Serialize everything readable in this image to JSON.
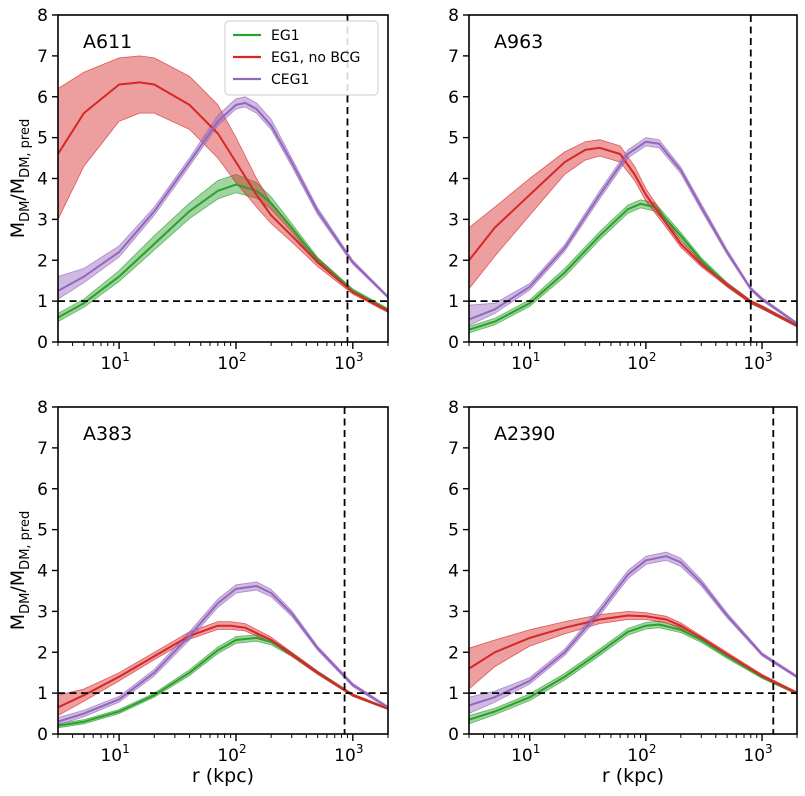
{
  "chart_data": [
    {
      "type": "line",
      "title": "A611",
      "xlabel": "",
      "ylabel": "M_DM/M_DM,pred",
      "xscale": "log",
      "xlim": [
        3,
        2000
      ],
      "ylim": [
        0,
        8
      ],
      "yticks": [
        "0",
        "1",
        "2",
        "3",
        "4",
        "5",
        "6",
        "7",
        "8"
      ],
      "xticks": [
        {
          "base": "10",
          "exp": "1"
        },
        {
          "base": "10",
          "exp": "2"
        },
        {
          "base": "10",
          "exp": "3"
        }
      ],
      "hline": 1,
      "vline": 900,
      "legend": {
        "placement": "top-right",
        "entries": [
          "EG1",
          "EG1, no BCG",
          "CEG1"
        ]
      },
      "series": [
        {
          "name": "EG1",
          "color": "#2ca02c",
          "x": [
            3,
            5,
            10,
            20,
            40,
            70,
            100,
            150,
            200,
            300,
            500,
            1000,
            2000
          ],
          "y": [
            0.6,
            0.95,
            1.6,
            2.4,
            3.2,
            3.7,
            3.85,
            3.7,
            3.4,
            2.8,
            2.0,
            1.25,
            0.78
          ],
          "lo": [
            0.5,
            0.85,
            1.48,
            2.25,
            3.02,
            3.5,
            3.65,
            3.52,
            3.25,
            2.7,
            1.93,
            1.2,
            0.74
          ],
          "hi": [
            0.7,
            1.05,
            1.75,
            2.6,
            3.4,
            3.95,
            4.1,
            3.9,
            3.55,
            2.9,
            2.07,
            1.3,
            0.82
          ]
        },
        {
          "name": "EG1, no BCG",
          "color": "#d62728",
          "x": [
            3,
            5,
            10,
            15,
            20,
            40,
            70,
            100,
            150,
            200,
            300,
            500,
            1000,
            2000
          ],
          "y": [
            4.6,
            5.6,
            6.3,
            6.35,
            6.3,
            5.8,
            5.1,
            4.4,
            3.6,
            3.1,
            2.6,
            1.95,
            1.22,
            0.76
          ],
          "lo": [
            3.0,
            4.3,
            5.4,
            5.6,
            5.6,
            5.2,
            4.5,
            3.9,
            3.3,
            2.9,
            2.45,
            1.85,
            1.17,
            0.72
          ],
          "hi": [
            6.2,
            6.6,
            6.95,
            7.0,
            6.95,
            6.5,
            5.8,
            5.0,
            4.0,
            3.4,
            2.78,
            2.05,
            1.27,
            0.8
          ]
        },
        {
          "name": "CEG1",
          "color": "#9467bd",
          "x": [
            3,
            5,
            10,
            20,
            40,
            70,
            100,
            120,
            150,
            200,
            300,
            500,
            1000,
            2000
          ],
          "y": [
            1.25,
            1.6,
            2.2,
            3.2,
            4.4,
            5.4,
            5.8,
            5.85,
            5.7,
            5.3,
            4.4,
            3.2,
            1.95,
            1.1
          ],
          "lo": [
            1.05,
            1.45,
            2.08,
            3.1,
            4.3,
            5.3,
            5.7,
            5.75,
            5.6,
            5.2,
            4.3,
            3.12,
            1.9,
            1.07
          ],
          "hi": [
            1.6,
            1.8,
            2.35,
            3.3,
            4.5,
            5.55,
            5.95,
            6.0,
            5.85,
            5.45,
            4.5,
            3.28,
            2.0,
            1.13
          ]
        }
      ]
    },
    {
      "type": "line",
      "title": "A963",
      "xlabel": "",
      "ylabel": "",
      "xscale": "log",
      "xlim": [
        3,
        2000
      ],
      "ylim": [
        0,
        8
      ],
      "yticks": [
        "0",
        "1",
        "2",
        "3",
        "4",
        "5",
        "6",
        "7",
        "8"
      ],
      "xticks": [
        {
          "base": "10",
          "exp": "1"
        },
        {
          "base": "10",
          "exp": "2"
        },
        {
          "base": "10",
          "exp": "3"
        }
      ],
      "hline": 1,
      "vline": 800,
      "series": [
        {
          "name": "EG1",
          "color": "#2ca02c",
          "x": [
            3,
            5,
            10,
            20,
            40,
            70,
            90,
            120,
            200,
            300,
            500,
            800,
            1000,
            2000
          ],
          "y": [
            0.3,
            0.5,
            0.95,
            1.7,
            2.6,
            3.25,
            3.38,
            3.3,
            2.6,
            2.0,
            1.4,
            0.98,
            0.85,
            0.4
          ],
          "lo": [
            0.22,
            0.42,
            0.87,
            1.6,
            2.5,
            3.15,
            3.28,
            3.2,
            2.52,
            1.94,
            1.35,
            0.94,
            0.81,
            0.37
          ],
          "hi": [
            0.38,
            0.58,
            1.03,
            1.8,
            2.7,
            3.35,
            3.48,
            3.4,
            2.68,
            2.06,
            1.45,
            1.02,
            0.89,
            0.43
          ]
        },
        {
          "name": "EG1, no BCG",
          "color": "#d62728",
          "x": [
            3,
            5,
            10,
            20,
            30,
            40,
            60,
            80,
            100,
            150,
            200,
            300,
            500,
            800,
            1000,
            2000
          ],
          "y": [
            2.0,
            2.8,
            3.6,
            4.4,
            4.7,
            4.75,
            4.6,
            4.1,
            3.6,
            2.9,
            2.4,
            1.9,
            1.4,
            0.98,
            0.85,
            0.4
          ],
          "lo": [
            1.3,
            2.1,
            3.1,
            4.1,
            4.45,
            4.55,
            4.4,
            3.95,
            3.45,
            2.8,
            2.32,
            1.84,
            1.35,
            0.94,
            0.81,
            0.37
          ],
          "hi": [
            2.8,
            3.3,
            4.0,
            4.65,
            4.9,
            4.95,
            4.8,
            4.3,
            3.75,
            3.0,
            2.48,
            1.96,
            1.45,
            1.02,
            0.89,
            0.43
          ]
        },
        {
          "name": "CEG1",
          "color": "#9467bd",
          "x": [
            3,
            5,
            10,
            20,
            40,
            70,
            100,
            130,
            200,
            300,
            500,
            800,
            1000,
            2000
          ],
          "y": [
            0.55,
            0.8,
            1.35,
            2.3,
            3.6,
            4.6,
            4.9,
            4.85,
            4.2,
            3.3,
            2.2,
            1.3,
            1.05,
            0.45
          ],
          "lo": [
            0.4,
            0.7,
            1.27,
            2.22,
            3.5,
            4.5,
            4.8,
            4.75,
            4.12,
            3.22,
            2.14,
            1.26,
            1.01,
            0.42
          ],
          "hi": [
            0.9,
            0.95,
            1.43,
            2.38,
            3.7,
            4.7,
            5.0,
            4.95,
            4.28,
            3.38,
            2.26,
            1.34,
            1.09,
            0.48
          ]
        }
      ]
    },
    {
      "type": "line",
      "title": "A383",
      "xlabel": "r (kpc)",
      "ylabel": "M_DM/M_DM,pred",
      "xscale": "log",
      "xlim": [
        3,
        2000
      ],
      "ylim": [
        0,
        8
      ],
      "yticks": [
        "0",
        "1",
        "2",
        "3",
        "4",
        "5",
        "6",
        "7",
        "8"
      ],
      "xticks": [
        {
          "base": "10",
          "exp": "1"
        },
        {
          "base": "10",
          "exp": "2"
        },
        {
          "base": "10",
          "exp": "3"
        }
      ],
      "hline": 1,
      "vline": 850,
      "series": [
        {
          "name": "EG1",
          "color": "#2ca02c",
          "x": [
            3,
            5,
            10,
            20,
            40,
            70,
            100,
            150,
            200,
            300,
            500,
            1000,
            2000
          ],
          "y": [
            0.2,
            0.3,
            0.55,
            0.95,
            1.5,
            2.05,
            2.3,
            2.35,
            2.25,
            1.95,
            1.5,
            0.95,
            0.62
          ],
          "lo": [
            0.15,
            0.25,
            0.5,
            0.9,
            1.43,
            1.97,
            2.22,
            2.27,
            2.18,
            1.9,
            1.46,
            0.92,
            0.6
          ],
          "hi": [
            0.25,
            0.35,
            0.6,
            1.0,
            1.57,
            2.13,
            2.38,
            2.43,
            2.32,
            2.0,
            1.54,
            0.98,
            0.64
          ]
        },
        {
          "name": "EG1, no BCG",
          "color": "#d62728",
          "x": [
            3,
            5,
            10,
            20,
            40,
            70,
            90,
            120,
            200,
            300,
            500,
            1000,
            2000
          ],
          "y": [
            0.65,
            0.95,
            1.4,
            1.9,
            2.4,
            2.65,
            2.65,
            2.6,
            2.3,
            1.95,
            1.5,
            0.95,
            0.62
          ],
          "lo": [
            0.45,
            0.8,
            1.3,
            1.82,
            2.32,
            2.56,
            2.56,
            2.52,
            2.24,
            1.9,
            1.46,
            0.92,
            0.6
          ],
          "hi": [
            0.95,
            1.1,
            1.5,
            2.0,
            2.5,
            2.75,
            2.75,
            2.7,
            2.37,
            2.0,
            1.54,
            0.98,
            0.64
          ]
        },
        {
          "name": "CEG1",
          "color": "#9467bd",
          "x": [
            3,
            5,
            10,
            20,
            40,
            70,
            100,
            150,
            200,
            300,
            500,
            1000,
            2000
          ],
          "y": [
            0.3,
            0.5,
            0.85,
            1.5,
            2.4,
            3.2,
            3.55,
            3.62,
            3.45,
            2.95,
            2.1,
            1.2,
            0.65
          ],
          "lo": [
            0.22,
            0.42,
            0.78,
            1.42,
            2.3,
            3.1,
            3.45,
            3.52,
            3.36,
            2.88,
            2.05,
            1.16,
            0.62
          ],
          "hi": [
            0.4,
            0.58,
            0.92,
            1.58,
            2.5,
            3.3,
            3.65,
            3.72,
            3.54,
            3.02,
            2.15,
            1.24,
            0.68
          ]
        }
      ]
    },
    {
      "type": "line",
      "title": "A2390",
      "xlabel": "r (kpc)",
      "ylabel": "",
      "xscale": "log",
      "xlim": [
        3,
        2000
      ],
      "ylim": [
        0,
        8
      ],
      "yticks": [
        "0",
        "1",
        "2",
        "3",
        "4",
        "5",
        "6",
        "7",
        "8"
      ],
      "xticks": [
        {
          "base": "10",
          "exp": "1"
        },
        {
          "base": "10",
          "exp": "2"
        },
        {
          "base": "10",
          "exp": "3"
        }
      ],
      "hline": 1,
      "vline": 1250,
      "series": [
        {
          "name": "EG1",
          "color": "#2ca02c",
          "x": [
            3,
            5,
            10,
            20,
            40,
            70,
            100,
            130,
            200,
            300,
            500,
            1000,
            2000
          ],
          "y": [
            0.35,
            0.55,
            0.9,
            1.4,
            2.0,
            2.5,
            2.65,
            2.68,
            2.55,
            2.3,
            1.9,
            1.4,
            1.0
          ],
          "lo": [
            0.25,
            0.47,
            0.82,
            1.32,
            1.92,
            2.42,
            2.57,
            2.6,
            2.48,
            2.24,
            1.85,
            1.36,
            0.97
          ],
          "hi": [
            0.45,
            0.63,
            0.98,
            1.48,
            2.08,
            2.58,
            2.73,
            2.76,
            2.62,
            2.36,
            1.95,
            1.44,
            1.03
          ]
        },
        {
          "name": "EG1, no BCG",
          "color": "#d62728",
          "x": [
            3,
            5,
            10,
            20,
            40,
            70,
            100,
            150,
            200,
            300,
            500,
            1000,
            2000
          ],
          "y": [
            1.6,
            2.0,
            2.35,
            2.6,
            2.8,
            2.9,
            2.88,
            2.8,
            2.65,
            2.35,
            1.95,
            1.42,
            1.0
          ],
          "lo": [
            1.1,
            1.65,
            2.15,
            2.45,
            2.7,
            2.8,
            2.8,
            2.72,
            2.58,
            2.3,
            1.9,
            1.38,
            0.97
          ],
          "hi": [
            2.1,
            2.3,
            2.55,
            2.75,
            2.92,
            3.0,
            2.97,
            2.88,
            2.72,
            2.4,
            2.0,
            1.46,
            1.03
          ]
        },
        {
          "name": "CEG1",
          "color": "#9467bd",
          "x": [
            3,
            5,
            10,
            20,
            40,
            70,
            100,
            150,
            200,
            300,
            500,
            1000,
            2000
          ],
          "y": [
            0.7,
            0.9,
            1.3,
            2.0,
            3.0,
            3.9,
            4.25,
            4.35,
            4.2,
            3.7,
            2.9,
            1.95,
            1.4
          ],
          "lo": [
            0.5,
            0.78,
            1.22,
            1.92,
            2.9,
            3.8,
            4.15,
            4.25,
            4.1,
            3.62,
            2.84,
            1.91,
            1.37
          ],
          "hi": [
            0.9,
            1.05,
            1.38,
            2.08,
            3.1,
            4.0,
            4.35,
            4.45,
            4.3,
            3.78,
            2.96,
            1.99,
            1.43
          ]
        }
      ]
    }
  ]
}
